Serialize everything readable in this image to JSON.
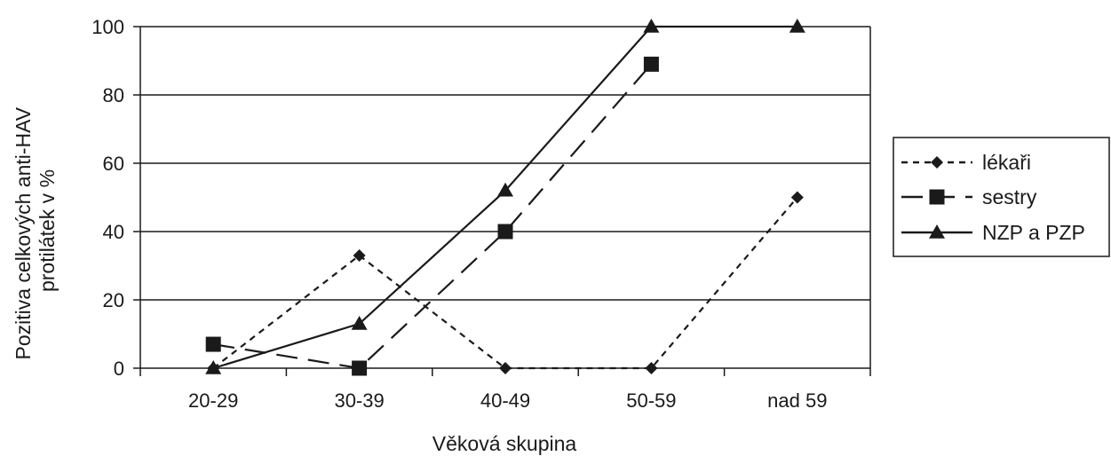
{
  "chart_data": {
    "type": "line",
    "title": "",
    "xlabel": "Věková skupina",
    "ylabel": [
      "Pozitiva celkových anti-HAV",
      "protilátek v %"
    ],
    "categories": [
      "20-29",
      "30-39",
      "40-49",
      "50-59",
      "nad 59"
    ],
    "ylim": [
      0,
      100
    ],
    "yticks": [
      0,
      20,
      40,
      60,
      80,
      100
    ],
    "grid": true,
    "legend_position": "right",
    "series": [
      {
        "name": "lékaři",
        "values": [
          0,
          33,
          0,
          0,
          50
        ],
        "marker": "diamond",
        "line_style": "short-dash"
      },
      {
        "name": "sestry",
        "values": [
          7,
          0,
          40,
          89,
          null
        ],
        "marker": "square",
        "line_style": "long-dash"
      },
      {
        "name": "NZP a PZP",
        "values": [
          0,
          13,
          52,
          100,
          100
        ],
        "marker": "triangle",
        "line_style": "solid"
      }
    ],
    "colors": {
      "line": "#1a1a1a",
      "grid": "#1a1a1a",
      "background": "#ffffff"
    }
  }
}
